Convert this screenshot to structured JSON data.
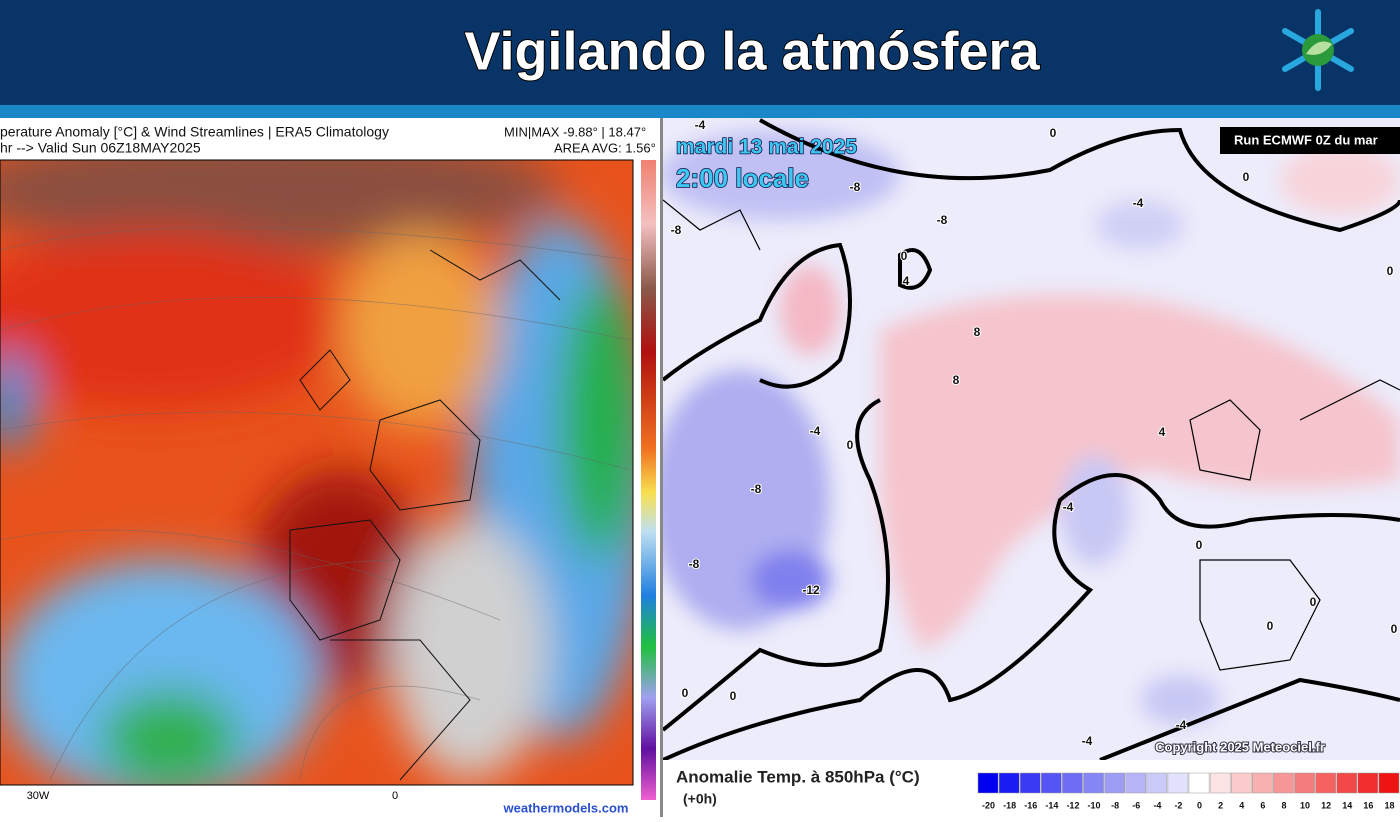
{
  "header": {
    "title": "Vigilando la atmósfera"
  },
  "left_map": {
    "title": "perature Anomaly [°C] & Wind Streamlines | ERA5 Climatology",
    "subtitle": "hr --> Valid Sun 06Z18MAY2025",
    "minmax": "MIN|MAX -9.88° | 18.47°",
    "area_avg": "AREA AVG: 1.56°",
    "x_labels": [
      "30W",
      "0"
    ],
    "credit": "weathermodels.com"
  },
  "right_map": {
    "date": "mardi 13 mai 2025",
    "time": "2:00 locale",
    "run": "Run ECMWF 0Z du mar",
    "copyright": "Copyright 2025 Meteociel.fr",
    "legend_title": "Anomalie Temp. à 850hPa (°C)",
    "lead": "(+0h)",
    "contour_labels": [
      -4,
      0,
      -8,
      -8,
      -8,
      -4,
      0,
      0,
      4,
      8,
      8,
      -4,
      0,
      4,
      -4,
      -8,
      -8,
      -12,
      0,
      0,
      0,
      0,
      0,
      -4,
      0,
      -4,
      0
    ],
    "colorbar": {
      "values": [
        -20,
        -18,
        -16,
        -14,
        -12,
        -10,
        -8,
        -6,
        -4,
        -2,
        0,
        2,
        4,
        6,
        8,
        10,
        12,
        14,
        16,
        18
      ],
      "colors": [
        "#0000f0",
        "#1c1cf5",
        "#3a3af5",
        "#5555f5",
        "#6e6ef5",
        "#8585f5",
        "#9c9cf5",
        "#b4b4f7",
        "#cbcbf9",
        "#e2e2fc",
        "#ffffff",
        "#fde4e4",
        "#fbcaca",
        "#f9b0b0",
        "#f79696",
        "#f57c7c",
        "#f46262",
        "#f24848",
        "#f02e2e",
        "#ee1414"
      ]
    }
  }
}
